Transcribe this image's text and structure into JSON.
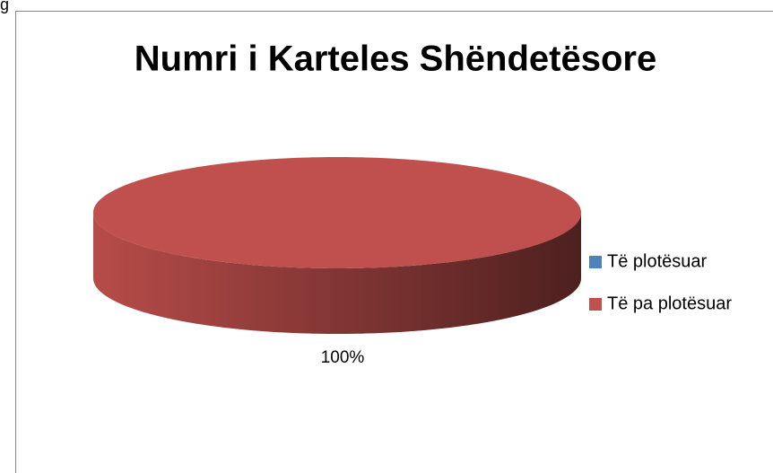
{
  "fragment": "g",
  "chart_data": {
    "type": "pie",
    "three_d": true,
    "title": "Numri i Karteles Shëndetësore",
    "categories": [
      "Të plotësuar",
      "Të pa plotësuar"
    ],
    "values": [
      0,
      100
    ],
    "value_labels": [
      null,
      "100%"
    ],
    "colors": [
      "#4f81bd",
      "#c0504d"
    ],
    "legend": "right"
  }
}
